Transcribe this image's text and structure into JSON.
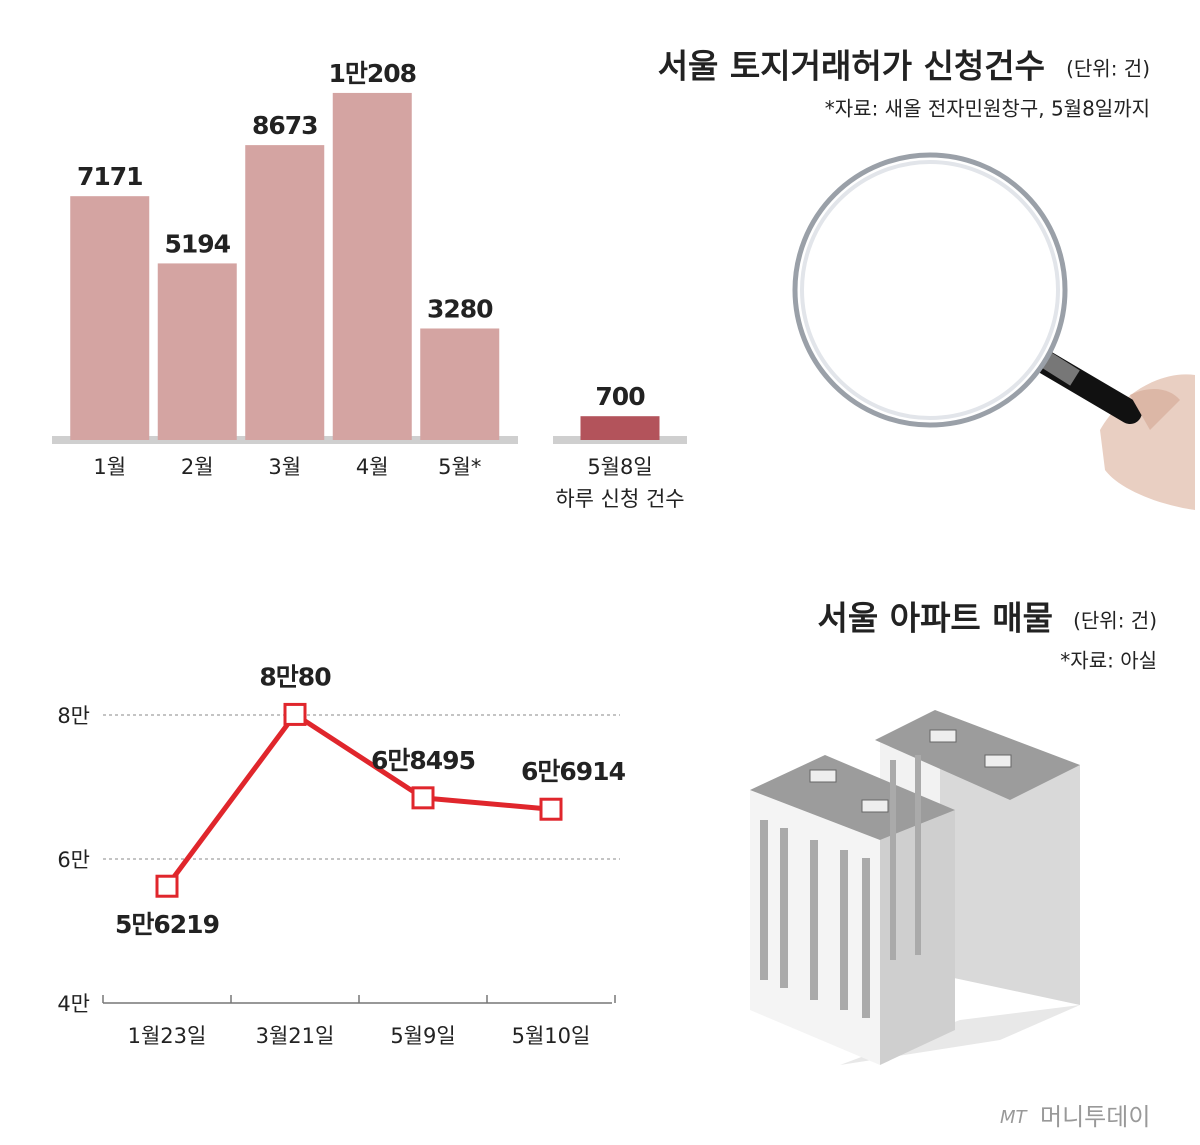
{
  "chart_data": [
    {
      "type": "bar",
      "title": "서울 토지거래허가 신청건수",
      "unit": "(단위: 건)",
      "source": "*자료: 새올 전자민원창구, 5월8일까지",
      "categories": [
        "1월",
        "2월",
        "3월",
        "4월",
        "5월*"
      ],
      "values": [
        7171,
        5194,
        8673,
        10208,
        3280
      ],
      "value_labels": [
        "7171",
        "5194",
        "8673",
        "1만208",
        "3280"
      ],
      "color": "#d4a4a2",
      "ylim": [
        0,
        11000
      ]
    },
    {
      "type": "bar",
      "categories": [
        "5월8일"
      ],
      "xlabel": "하루 신청 건수",
      "values": [
        700
      ],
      "value_labels": [
        "700"
      ],
      "color": "#b3535b",
      "ylim": [
        0,
        11000
      ]
    },
    {
      "type": "line",
      "title": "서울 아파트 매물",
      "unit": "(단위: 건)",
      "source": "*자료: 아실",
      "categories": [
        "1월23일",
        "3월21일",
        "5월9일",
        "5월10일"
      ],
      "values": [
        56219,
        80080,
        68495,
        66914
      ],
      "value_labels": [
        "5만6219",
        "8만80",
        "6만8495",
        "6만6914"
      ],
      "color": "#e0262c",
      "ylim": [
        40000,
        80000
      ],
      "yticks": [
        {
          "value": 40000,
          "label": "4만"
        },
        {
          "value": 60000,
          "label": "6만"
        },
        {
          "value": 80000,
          "label": "8만"
        }
      ],
      "grid": true
    }
  ],
  "footer": {
    "logo": "MT",
    "brand": "머니투데이"
  }
}
